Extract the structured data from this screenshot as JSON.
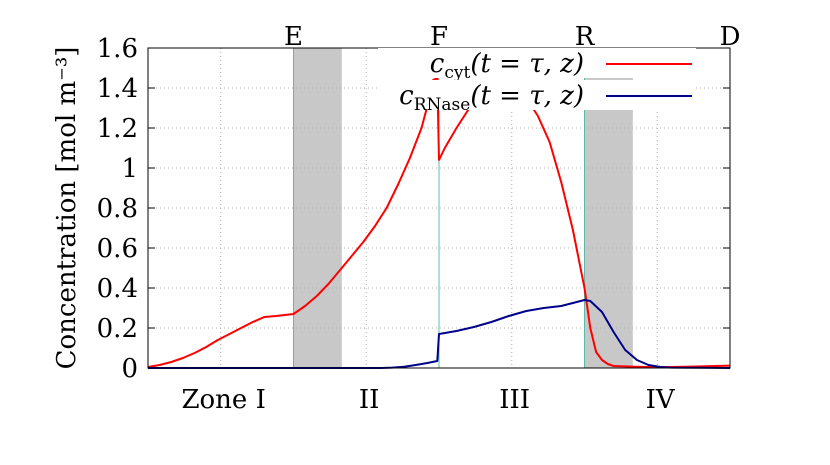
{
  "chart_data": {
    "type": "line",
    "title": "",
    "xlabel": "",
    "ylabel": "Concentration [mol m⁻³]",
    "xlim": [
      0,
      1
    ],
    "ylim": [
      0,
      1.6
    ],
    "yticks": [
      "0",
      "0.2",
      "0.4",
      "0.6",
      "0.8",
      "1",
      "1.2",
      "1.4",
      "1.6"
    ],
    "ytick_values": [
      0,
      0.2,
      0.4,
      0.6,
      0.8,
      1.0,
      1.2,
      1.4,
      1.6
    ],
    "grid": true,
    "legend_position": "top-right",
    "top_markers": [
      {
        "label": "E",
        "x": 0.25
      },
      {
        "label": "F",
        "x": 0.5
      },
      {
        "label": "R",
        "x": 0.75
      },
      {
        "label": "D",
        "x": 1.0
      }
    ],
    "vertical_lines": [
      0.25,
      0.5,
      0.75
    ],
    "shaded_regions": [
      [
        0.25,
        0.333
      ],
      [
        0.75,
        0.833
      ]
    ],
    "zones": [
      {
        "label": "Zone I",
        "x": 0.13
      },
      {
        "label": "II",
        "x": 0.38
      },
      {
        "label": "III",
        "x": 0.63
      },
      {
        "label": "IV",
        "x": 0.88
      }
    ],
    "series": [
      {
        "name": "c_cyt(t = τ, z)",
        "name_main": "c",
        "name_sub": "cyt",
        "name_args": "(t = τ, z)",
        "color": "#ff0000",
        "x": [
          0,
          0.02,
          0.04,
          0.06,
          0.08,
          0.1,
          0.12,
          0.14,
          0.16,
          0.18,
          0.2,
          0.22,
          0.25,
          0.27,
          0.29,
          0.31,
          0.33,
          0.35,
          0.37,
          0.39,
          0.41,
          0.43,
          0.45,
          0.47,
          0.48,
          0.49,
          0.497,
          0.5,
          0.51,
          0.53,
          0.55,
          0.57,
          0.59,
          0.61,
          0.63,
          0.65,
          0.67,
          0.69,
          0.71,
          0.73,
          0.75,
          0.76,
          0.77,
          0.78,
          0.79,
          0.8,
          0.82,
          0.84,
          0.86,
          0.9,
          0.95,
          1.0
        ],
        "y": [
          0.005,
          0.015,
          0.03,
          0.05,
          0.075,
          0.105,
          0.14,
          0.17,
          0.2,
          0.23,
          0.255,
          0.26,
          0.27,
          0.31,
          0.36,
          0.42,
          0.49,
          0.56,
          0.63,
          0.71,
          0.8,
          0.92,
          1.05,
          1.2,
          1.31,
          1.44,
          1.45,
          1.04,
          1.1,
          1.2,
          1.29,
          1.37,
          1.41,
          1.42,
          1.4,
          1.35,
          1.26,
          1.13,
          0.93,
          0.69,
          0.4,
          0.2,
          0.08,
          0.04,
          0.02,
          0.01,
          0.008,
          0.006,
          0.005,
          0.005,
          0.008,
          0.012
        ]
      },
      {
        "name": "c_RNase(t = τ, z)",
        "name_main": "c",
        "name_sub": "RNase",
        "name_args": "(t = τ, z)",
        "color": "#00008b",
        "x": [
          0,
          0.1,
          0.2,
          0.3,
          0.4,
          0.42,
          0.44,
          0.46,
          0.48,
          0.497,
          0.5,
          0.53,
          0.56,
          0.59,
          0.62,
          0.65,
          0.68,
          0.71,
          0.73,
          0.75,
          0.76,
          0.78,
          0.8,
          0.82,
          0.84,
          0.86,
          0.88,
          0.9,
          0.95,
          1.0
        ],
        "y": [
          0,
          0,
          0,
          0,
          0,
          0.002,
          0.006,
          0.015,
          0.025,
          0.035,
          0.17,
          0.185,
          0.205,
          0.23,
          0.26,
          0.285,
          0.3,
          0.31,
          0.325,
          0.34,
          0.335,
          0.28,
          0.18,
          0.09,
          0.04,
          0.015,
          0.005,
          0.002,
          0.001,
          0
        ]
      }
    ]
  }
}
